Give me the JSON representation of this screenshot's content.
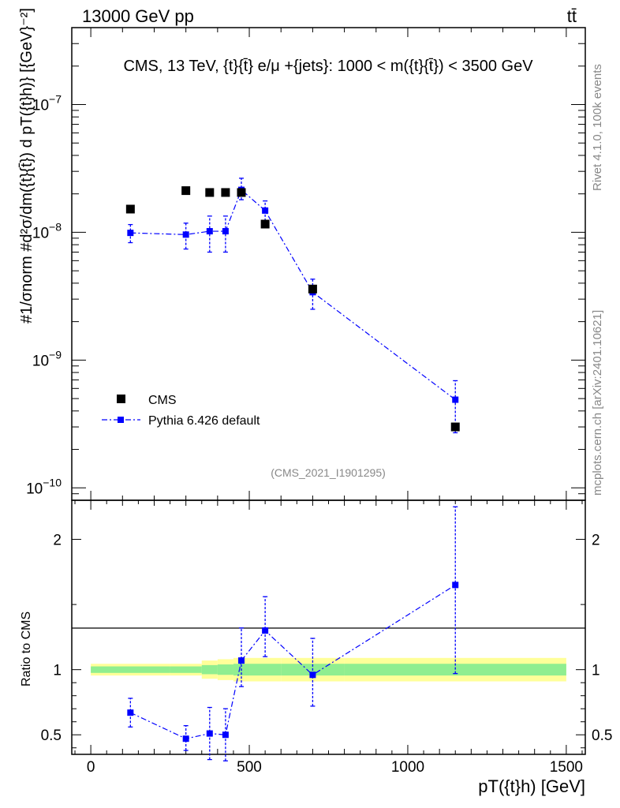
{
  "header": {
    "energy_label": "13000 GeV pp",
    "process_label": "tt̄"
  },
  "side_labels": {
    "rivet": "Rivet 4.1.0,  100k events",
    "mcplots": "mcplots.cern.ch [arXiv:2401.10621]"
  },
  "chart_data": [
    {
      "type": "scatter",
      "title": "CMS, 13 TeV, {t}{t̄} e/μ +{jets}: 1000 < m({t}{t̄}) < 3500 GeV",
      "ylabel": "#1/σnorm #d²σ/dm({t}{t̄}) d pT({t}h)} [{GeV}⁻²]",
      "yscale": "log",
      "xlim": [
        -60,
        1560
      ],
      "ylim": [
        8e-11,
        4e-07
      ],
      "ytick_labels": [
        {
          "value": 1e-10,
          "base": "10",
          "exp": "−10"
        },
        {
          "value": 1e-09,
          "base": "10",
          "exp": "−9"
        },
        {
          "value": 1e-08,
          "base": "10",
          "exp": "−8"
        },
        {
          "value": 1e-07,
          "base": "10",
          "exp": "−7"
        }
      ],
      "analysis_id": "(CMS_2021_I1901295)",
      "legend": [
        {
          "label": "CMS",
          "marker": "square",
          "color": "#000000"
        },
        {
          "label": "Pythia 6.426 default",
          "marker": "square-dashdot",
          "color": "#0000ff"
        }
      ],
      "series": [
        {
          "name": "CMS",
          "color": "#000000",
          "x": [
            125,
            300,
            375,
            425,
            475,
            550,
            700,
            1150
          ],
          "y": [
            1.52e-08,
            2.12e-08,
            2.05e-08,
            2.05e-08,
            2.05e-08,
            1.16e-08,
            3.6e-09,
            3e-10
          ]
        },
        {
          "name": "Pythia 6.426 default",
          "color": "#0000ff",
          "x": [
            125,
            300,
            375,
            425,
            475,
            550,
            700,
            1150
          ],
          "y": [
            9.9e-09,
            9.6e-09,
            1.02e-08,
            1.02e-08,
            2.15e-08,
            1.48e-08,
            3.4e-09,
            4.9e-10
          ],
          "yerr_low": [
            1.6e-09,
            2.2e-09,
            3.2e-09,
            3.2e-09,
            3.5e-09,
            2.5e-09,
            9e-10,
            2.2e-10
          ],
          "yerr_high": [
            1.6e-09,
            2.2e-09,
            3.2e-09,
            3.2e-09,
            5e-09,
            2.8e-09,
            9e-10,
            2e-10
          ]
        }
      ]
    },
    {
      "type": "scatter",
      "xlabel": "pT({t}h) [GeV]",
      "ylabel": "Ratio to CMS",
      "xlim": [
        -60,
        1560
      ],
      "ylim": [
        0.35,
        2.3
      ],
      "xticks": [
        0,
        500,
        1000,
        1500
      ],
      "xtick_labels": [
        "0",
        "500",
        "1000",
        "1500"
      ],
      "yticks": [
        0.5,
        1,
        2
      ],
      "ytick_labels": [
        "0.5",
        "1",
        "2"
      ],
      "bands": {
        "bin_edges": [
          0,
          250,
          350,
          400,
          450,
          500,
          600,
          800,
          1500
        ],
        "green_low": [
          0.975,
          0.975,
          0.965,
          0.96,
          0.955,
          0.955,
          0.955,
          0.955
        ],
        "green_high": [
          1.025,
          1.025,
          1.035,
          1.04,
          1.045,
          1.045,
          1.045,
          1.045
        ],
        "yellow_low": [
          0.955,
          0.955,
          0.93,
          0.92,
          0.91,
          0.91,
          0.91,
          0.91
        ],
        "yellow_high": [
          1.045,
          1.045,
          1.07,
          1.08,
          1.09,
          1.09,
          1.09,
          1.09
        ],
        "green_color": "#90ee90",
        "yellow_color": "#ffff99"
      },
      "series": [
        {
          "name": "Pythia 6.426 default / CMS",
          "color": "#0000ff",
          "x": [
            125,
            300,
            375,
            425,
            475,
            550,
            700,
            1150
          ],
          "y": [
            0.67,
            0.47,
            0.51,
            0.5,
            1.07,
            1.3,
            0.96,
            1.65
          ],
          "yerr_low": [
            0.11,
            0.09,
            0.2,
            0.2,
            0.2,
            0.2,
            0.24,
            0.68
          ],
          "yerr_high": [
            0.11,
            0.1,
            0.2,
            0.2,
            0.25,
            0.26,
            0.28,
            0.6
          ]
        }
      ]
    }
  ]
}
